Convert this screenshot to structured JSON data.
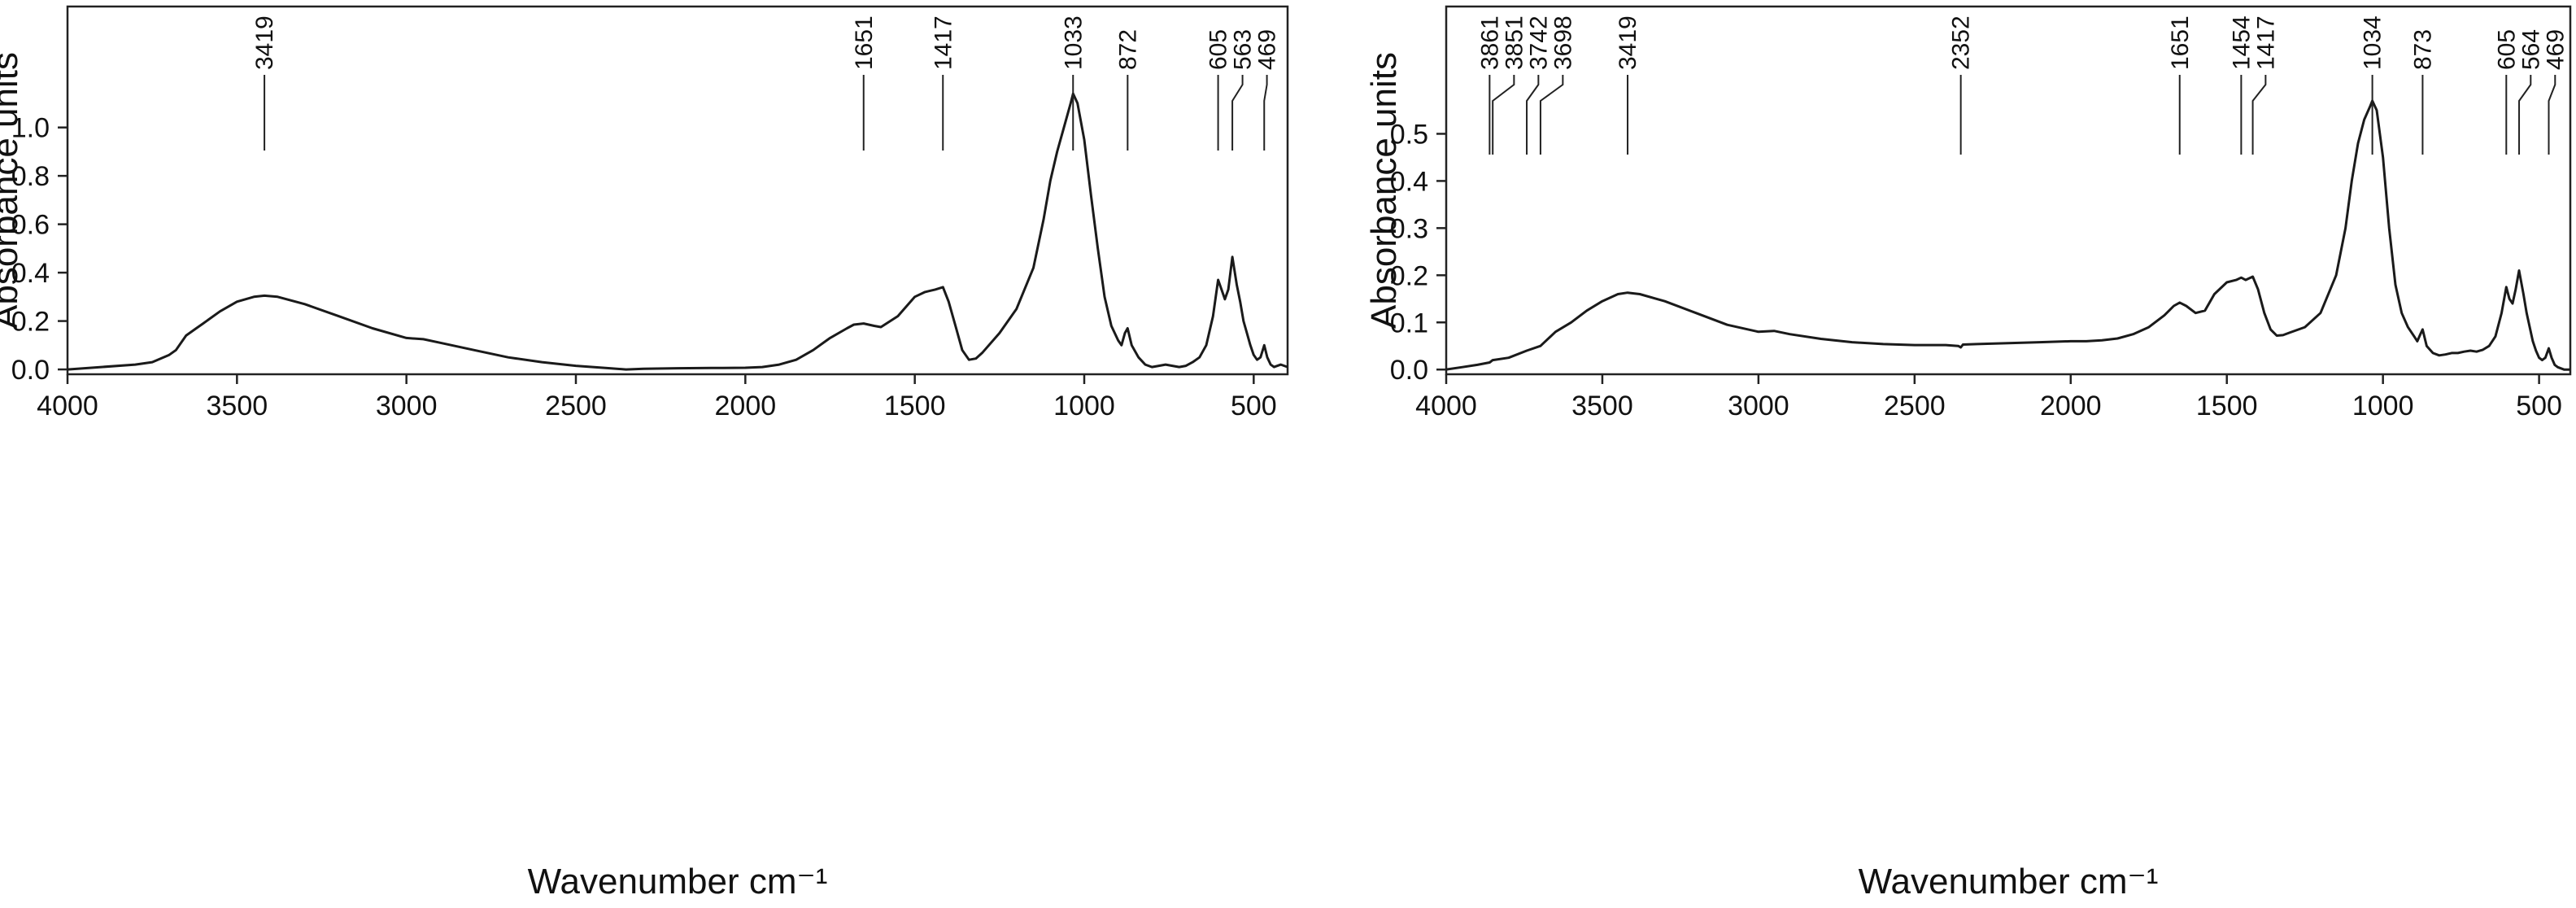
{
  "chart_data": [
    {
      "type": "line",
      "xlabel": "Wavenumber cm⁻¹",
      "ylabel": "Absorbance units",
      "xlim": [
        4000,
        400
      ],
      "ylim": [
        -0.02,
        1.5
      ],
      "x_ticks": [
        4000,
        3500,
        3000,
        2500,
        2000,
        1500,
        1000,
        500
      ],
      "y_ticks": [
        0.0,
        0.2,
        0.4,
        0.6,
        0.8,
        1.0
      ],
      "y_tick_labels": [
        "0.0",
        "0.2",
        "0.4",
        "0.6",
        "0.8",
        "1.0"
      ],
      "grid": false,
      "peak_labels": [
        3419,
        1651,
        1417,
        1033,
        872,
        605,
        563,
        469
      ],
      "series": [
        {
          "x": [
            4000,
            3900,
            3800,
            3750,
            3700,
            3680,
            3650,
            3620,
            3600,
            3550,
            3500,
            3450,
            3419,
            3380,
            3300,
            3200,
            3100,
            3000,
            2950,
            2900,
            2800,
            2700,
            2600,
            2500,
            2400,
            2352,
            2300,
            2200,
            2100,
            2000,
            1950,
            1900,
            1850,
            1800,
            1750,
            1700,
            1680,
            1651,
            1620,
            1600,
            1550,
            1500,
            1470,
            1440,
            1417,
            1400,
            1380,
            1360,
            1340,
            1320,
            1300,
            1250,
            1200,
            1150,
            1120,
            1100,
            1080,
            1060,
            1040,
            1033,
            1020,
            1000,
            980,
            960,
            940,
            920,
            900,
            890,
            880,
            872,
            860,
            840,
            820,
            800,
            780,
            760,
            740,
            720,
            700,
            680,
            660,
            640,
            620,
            605,
            595,
            585,
            575,
            563,
            550,
            540,
            530,
            520,
            510,
            500,
            490,
            480,
            469,
            460,
            450,
            440,
            420,
            400
          ],
          "y": [
            0.0,
            0.01,
            0.02,
            0.03,
            0.06,
            0.08,
            0.14,
            0.17,
            0.19,
            0.24,
            0.28,
            0.3,
            0.305,
            0.3,
            0.27,
            0.22,
            0.17,
            0.13,
            0.125,
            0.11,
            0.08,
            0.05,
            0.03,
            0.015,
            0.005,
            0.0,
            0.003,
            0.005,
            0.006,
            0.007,
            0.01,
            0.02,
            0.04,
            0.08,
            0.13,
            0.17,
            0.185,
            0.19,
            0.18,
            0.175,
            0.22,
            0.3,
            0.32,
            0.33,
            0.34,
            0.28,
            0.18,
            0.08,
            0.04,
            0.045,
            0.07,
            0.15,
            0.25,
            0.42,
            0.62,
            0.78,
            0.9,
            1.0,
            1.1,
            1.14,
            1.1,
            0.95,
            0.72,
            0.5,
            0.3,
            0.18,
            0.12,
            0.1,
            0.15,
            0.17,
            0.1,
            0.05,
            0.02,
            0.01,
            0.015,
            0.02,
            0.015,
            0.01,
            0.015,
            0.03,
            0.05,
            0.1,
            0.22,
            0.37,
            0.33,
            0.29,
            0.33,
            0.465,
            0.35,
            0.28,
            0.2,
            0.15,
            0.1,
            0.06,
            0.04,
            0.05,
            0.1,
            0.05,
            0.02,
            0.01,
            0.02,
            0.01
          ]
        }
      ]
    },
    {
      "type": "line",
      "xlabel": "Wavenumber cm⁻¹",
      "ylabel": "Absorbance units",
      "xlim": [
        4000,
        400
      ],
      "ylim": [
        -0.01,
        0.77
      ],
      "x_ticks": [
        4000,
        3500,
        3000,
        2500,
        2000,
        1500,
        1000,
        500
      ],
      "y_ticks": [
        0.0,
        0.1,
        0.2,
        0.3,
        0.4,
        0.5
      ],
      "y_tick_labels": [
        "0.0",
        "0.1",
        "0.2",
        "0.3",
        "0.4",
        "0.5"
      ],
      "grid": false,
      "peak_labels": [
        3861,
        3851,
        3742,
        3698,
        3419,
        2352,
        1651,
        1454,
        1417,
        1034,
        873,
        605,
        564,
        469
      ],
      "series": [
        {
          "x": [
            4000,
            3950,
            3900,
            3861,
            3851,
            3800,
            3742,
            3698,
            3650,
            3600,
            3550,
            3500,
            3450,
            3419,
            3380,
            3300,
            3200,
            3100,
            3000,
            2950,
            2900,
            2800,
            2700,
            2600,
            2500,
            2400,
            2360,
            2352,
            2345,
            2300,
            2200,
            2100,
            2000,
            1950,
            1900,
            1850,
            1800,
            1750,
            1700,
            1670,
            1651,
            1630,
            1600,
            1570,
            1540,
            1500,
            1470,
            1454,
            1440,
            1417,
            1400,
            1380,
            1360,
            1340,
            1320,
            1300,
            1250,
            1200,
            1150,
            1120,
            1100,
            1080,
            1060,
            1040,
            1034,
            1020,
            1000,
            980,
            960,
            940,
            920,
            900,
            890,
            880,
            873,
            860,
            840,
            820,
            800,
            780,
            760,
            740,
            720,
            700,
            680,
            660,
            640,
            620,
            605,
            595,
            585,
            575,
            564,
            550,
            540,
            530,
            520,
            510,
            500,
            490,
            480,
            469,
            460,
            450,
            440,
            420,
            400
          ],
          "y": [
            0.0,
            0.005,
            0.01,
            0.015,
            0.02,
            0.025,
            0.04,
            0.05,
            0.08,
            0.1,
            0.125,
            0.145,
            0.16,
            0.163,
            0.16,
            0.145,
            0.12,
            0.095,
            0.08,
            0.082,
            0.075,
            0.065,
            0.058,
            0.054,
            0.052,
            0.052,
            0.05,
            0.047,
            0.053,
            0.054,
            0.056,
            0.058,
            0.06,
            0.06,
            0.062,
            0.066,
            0.075,
            0.09,
            0.115,
            0.135,
            0.142,
            0.135,
            0.12,
            0.125,
            0.16,
            0.185,
            0.19,
            0.195,
            0.19,
            0.197,
            0.17,
            0.12,
            0.085,
            0.072,
            0.073,
            0.078,
            0.09,
            0.12,
            0.2,
            0.3,
            0.4,
            0.48,
            0.53,
            0.56,
            0.57,
            0.55,
            0.45,
            0.3,
            0.18,
            0.12,
            0.09,
            0.07,
            0.06,
            0.075,
            0.085,
            0.05,
            0.035,
            0.03,
            0.032,
            0.035,
            0.035,
            0.038,
            0.04,
            0.038,
            0.042,
            0.05,
            0.07,
            0.12,
            0.175,
            0.15,
            0.14,
            0.17,
            0.21,
            0.16,
            0.12,
            0.09,
            0.06,
            0.04,
            0.025,
            0.02,
            0.025,
            0.045,
            0.025,
            0.01,
            0.005,
            0.0,
            0.0
          ]
        }
      ]
    }
  ]
}
